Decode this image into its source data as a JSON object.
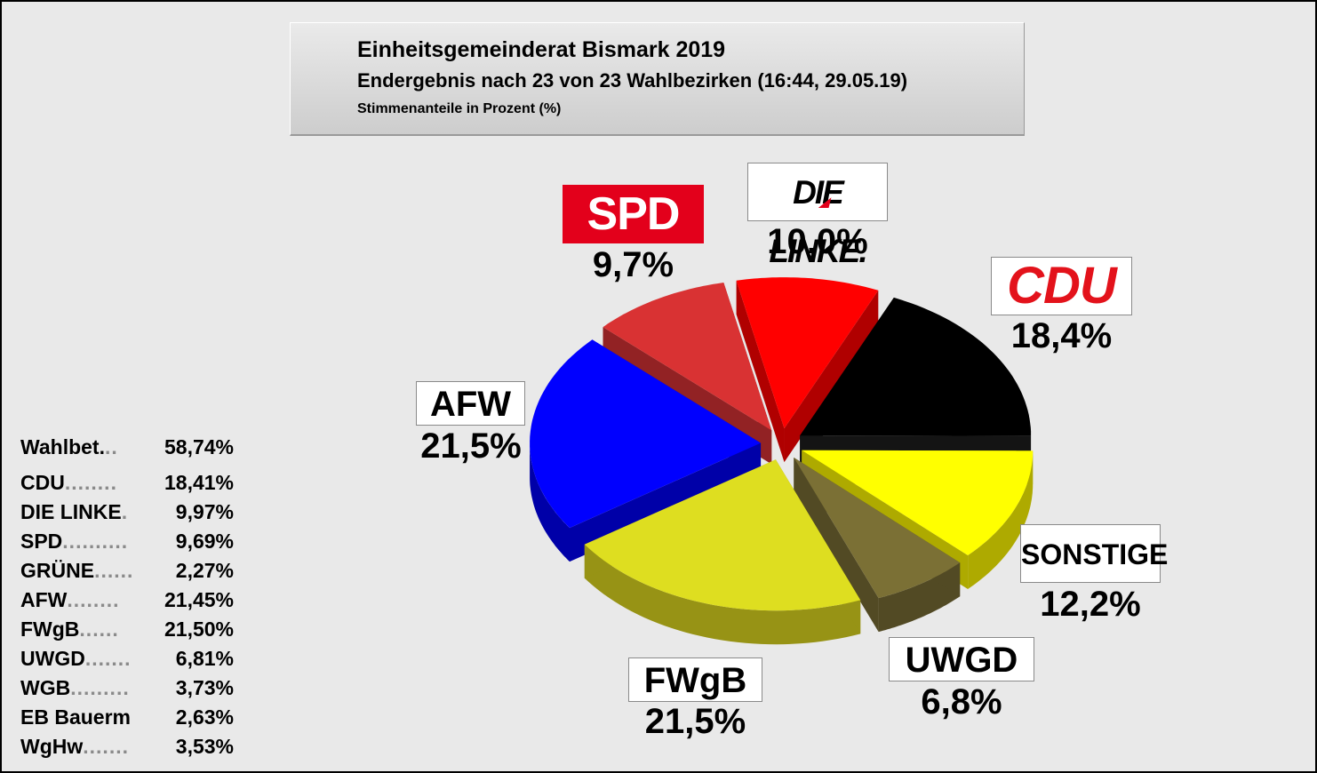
{
  "header": {
    "title": "Einheitsgemeinderat Bismark 2019",
    "subtitle": "Endergebnis nach 23 von 23 Wahlbezirken (16:44, 29.05.19)",
    "note": "Stimmenanteile in Prozent (%)"
  },
  "results_table": {
    "turnout": {
      "label": "Wahlbet.",
      "dots": "..",
      "value": "58,74%"
    },
    "rows": [
      {
        "label": "CDU",
        "dots": "........",
        "value": "18,41%"
      },
      {
        "label": "DIE LINKE",
        "dots": ".",
        "value": "9,97%"
      },
      {
        "label": "SPD",
        "dots": "..........",
        "value": "9,69%"
      },
      {
        "label": "GRÜNE",
        "dots": "......",
        "value": "2,27%"
      },
      {
        "label": "AFW",
        "dots": "........",
        "value": "21,45%"
      },
      {
        "label": "FWgB",
        "dots": "......",
        "value": "21,50%"
      },
      {
        "label": "UWGD",
        "dots": ".......",
        "value": "6,81%"
      },
      {
        "label": "WGB",
        "dots": ".........",
        "value": "3,73%"
      },
      {
        "label": "EB Bauerm",
        "dots": "",
        "value": "2,63%"
      },
      {
        "label": "WgHw",
        "dots": ".......",
        "value": "3,53%"
      }
    ]
  },
  "chart_data": {
    "type": "pie",
    "style": "3d-exploded",
    "title": "Einheitsgemeinderat Bismark 2019",
    "subtitle": "Endergebnis nach 23 von 23 Wahlbezirken (16:44, 29.05.19)",
    "unit": "%",
    "slices": [
      {
        "key": "cdu",
        "label": "CDU",
        "value": 18.4,
        "display": "18,4%",
        "color": "#000000",
        "side": "#141414"
      },
      {
        "key": "sonstige",
        "label": "SONSTIGE",
        "value": 12.2,
        "display": "12,2%",
        "color": "#ffff00",
        "side": "#aeaa00"
      },
      {
        "key": "uwgd",
        "label": "UWGD",
        "value": 6.8,
        "display": "6,8%",
        "color": "#7b7035",
        "side": "#524a24"
      },
      {
        "key": "fwgb",
        "label": "FWgB",
        "value": 21.5,
        "display": "21,5%",
        "color": "#dede20",
        "side": "#979315"
      },
      {
        "key": "afw",
        "label": "AFW",
        "value": 21.5,
        "display": "21,5%",
        "color": "#0000ff",
        "side": "#0000a8"
      },
      {
        "key": "spd",
        "label": "SPD",
        "value": 9.7,
        "display": "9,7%",
        "color": "#d93233",
        "side": "#922224"
      },
      {
        "key": "linke",
        "label": "DIE LINKE.",
        "value": 10.0,
        "display": "10,0%",
        "color": "#ff0000",
        "side": "#b00000"
      }
    ]
  }
}
